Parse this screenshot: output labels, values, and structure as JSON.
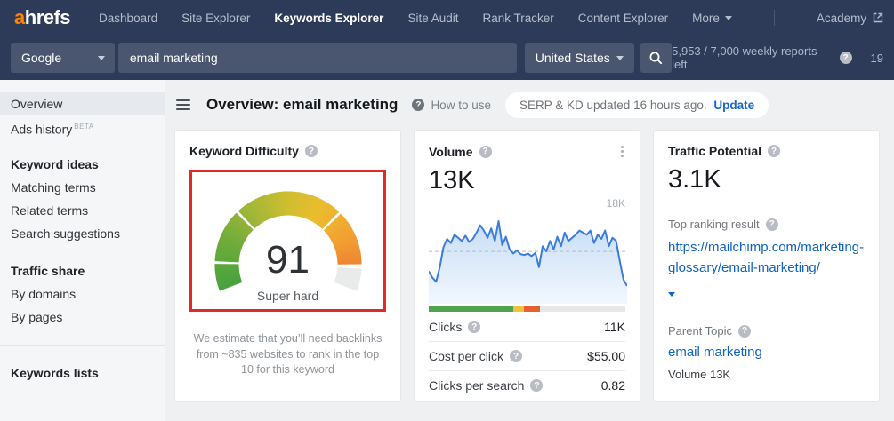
{
  "brand": {
    "logo_a": "a",
    "logo_rest": "hrefs"
  },
  "nav": {
    "items": [
      {
        "label": "Dashboard",
        "active": false
      },
      {
        "label": "Site Explorer",
        "active": false
      },
      {
        "label": "Keywords Explorer",
        "active": true
      },
      {
        "label": "Site Audit",
        "active": false
      },
      {
        "label": "Rank Tracker",
        "active": false
      },
      {
        "label": "Content Explorer",
        "active": false
      }
    ],
    "more_label": "More",
    "academy_label": "Academy"
  },
  "search": {
    "engine": "Google",
    "query": "email marketing",
    "country": "United States",
    "reports_left": "5,953 / 7,000 weekly reports left",
    "truncated_right": "19"
  },
  "sidebar": {
    "items": [
      {
        "label": "Overview"
      },
      {
        "label": "Ads history",
        "badge": "BETA"
      },
      {
        "label": "Keyword ideas"
      },
      {
        "label": "Matching terms"
      },
      {
        "label": "Related terms"
      },
      {
        "label": "Search suggestions"
      },
      {
        "label": "Traffic share"
      },
      {
        "label": "By domains"
      },
      {
        "label": "By pages"
      },
      {
        "label": "Keywords lists"
      }
    ]
  },
  "page_header": {
    "title": "Overview: email marketing",
    "help_label": "How to use",
    "update_notice": "SERP & KD updated 16 hours ago.",
    "update_label": "Update"
  },
  "cards": {
    "difficulty": {
      "title": "Keyword Difficulty",
      "note": "We estimate that you’ll need backlinks from ~835 websites to rank in the top 10 for this keyword"
    },
    "volume": {
      "title": "Volume",
      "value": "13K",
      "metrics": [
        {
          "label": "Clicks",
          "value": "11K"
        },
        {
          "label": "Cost per click",
          "value": "$55.00"
        },
        {
          "label": "Clicks per search",
          "value": "0.82"
        }
      ]
    },
    "traffic_potential": {
      "title": "Traffic Potential",
      "value": "3.1K",
      "top_ranking_label": "Top ranking result",
      "url": "https://mailchimp.com/marketing-glossary/email-marketing/",
      "parent_topic_label": "Parent Topic",
      "parent_topic": "email marketing",
      "parent_volume": "Volume 13K"
    }
  },
  "chart_data": [
    {
      "type": "gauge",
      "name": "keyword-difficulty",
      "title": "Keyword Difficulty",
      "value": 91,
      "max": 100,
      "label": "Super hard",
      "thresholds": [
        10,
        30,
        70
      ],
      "remaining_color": "#e9eaea",
      "color_stops": [
        [
          0,
          "#47a23d"
        ],
        [
          0.18,
          "#6cab3b"
        ],
        [
          0.35,
          "#a4b737"
        ],
        [
          0.5,
          "#cfbe2f"
        ],
        [
          0.62,
          "#e9bd2d"
        ],
        [
          0.72,
          "#f0ae30"
        ],
        [
          0.82,
          "#f19a33"
        ],
        [
          0.91,
          "#ed8433"
        ]
      ]
    },
    {
      "type": "area",
      "name": "volume-trend",
      "title": "Volume 13K",
      "unit": "K",
      "ylim": [
        0,
        18
      ],
      "max_gridline_label": "18K",
      "baseline": 10,
      "line_color": "#3b7ddd",
      "grid": "dashed-baseline-only",
      "values": [
        6.2,
        5.0,
        4.2,
        7.0,
        10.8,
        12.4,
        11.6,
        13.2,
        12.6,
        12.0,
        13.0,
        11.8,
        12.4,
        13.6,
        15.0,
        14.0,
        12.6,
        14.4,
        12.0,
        15.8,
        11.2,
        12.8,
        10.4,
        9.6,
        10.2,
        9.5,
        9.3,
        9.6,
        9.1,
        9.7,
        7.0,
        11.0,
        10.0,
        12.0,
        10.4,
        12.8,
        11.0,
        13.6,
        12.0,
        12.6,
        13.2,
        14.0,
        13.6,
        13.2,
        14.0,
        11.6,
        13.2,
        12.4,
        14.0,
        11.0,
        12.6,
        12.0,
        8.2,
        4.6,
        3.4
      ]
    },
    {
      "type": "stacked-bar",
      "name": "clicks-breakdown",
      "segments": [
        {
          "name": "green",
          "color": "#4fa452",
          "pct": 43
        },
        {
          "name": "yellow",
          "color": "#f3c13c",
          "pct": 5.5
        },
        {
          "name": "orange",
          "color": "#e5612f",
          "pct": 8
        },
        {
          "name": "gray",
          "color": "#e7e8e9",
          "pct": 43.5
        }
      ]
    }
  ]
}
